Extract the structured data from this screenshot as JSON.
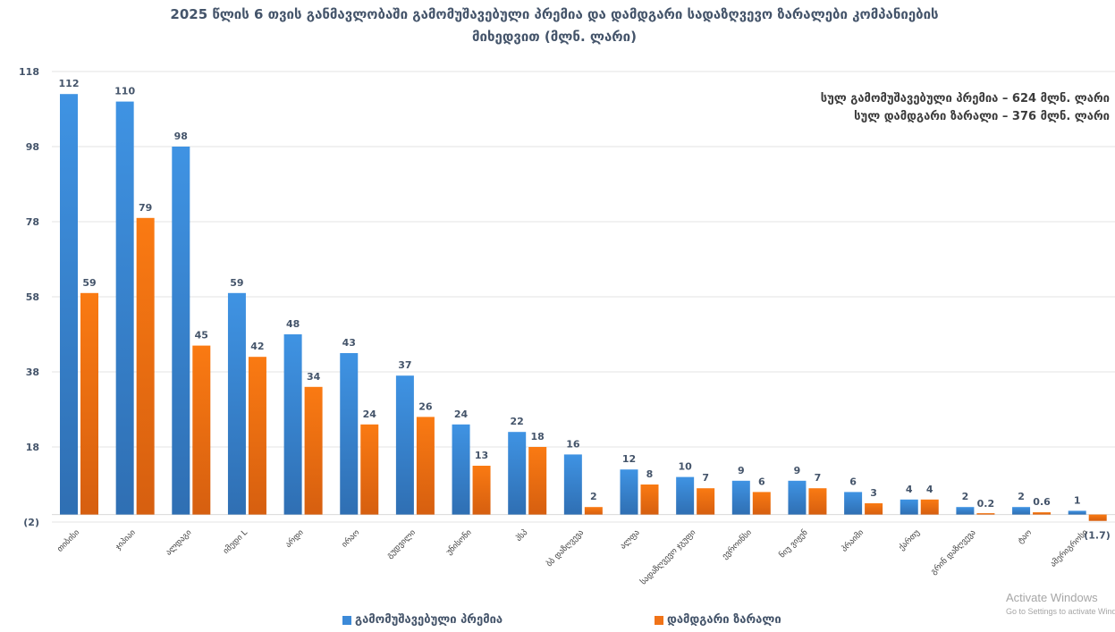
{
  "chart_data": {
    "type": "bar",
    "title": "2025 წლის 6 თვის განმავლობაში გამომუშავებული პრემია და დამდგარი სადაზღვევო ზარალები  კომპანიების მიხედვით (მლნ. ლარი)",
    "title_lines": [
      "2025 წლის 6 თვის განმავლობაში გამომუშავებული პრემია და დამდგარი სადაზღვევო ზარალები  კომპანიების",
      "მიხედვით (მლნ. ლარი)"
    ],
    "annotations": [
      "სულ გამომუშავებული პრემია – 624 მლნ. ლარი",
      "სულ დამდგარი ზარალი – 376 მლნ. ლარი"
    ],
    "xlabel": "",
    "ylabel": "",
    "ylim": [
      -2,
      118
    ],
    "yticks": [
      118,
      98,
      78,
      58,
      38,
      18,
      -2
    ],
    "ytick_labels": [
      "118",
      "98",
      "78",
      "58",
      "38",
      "18",
      "(2)"
    ],
    "grid": true,
    "legend_position": "bottom",
    "categories": [
      "თიბისი",
      "ჯიპიაი",
      "ალდაგი",
      "იმედი L",
      "არდი",
      "ირაო",
      "გუდვილი",
      "უნისონი",
      "პსპ",
      "ბბ დაზღვევა",
      "ალფა",
      "სადაზღვევო ჯგუფი",
      "ევროინსი",
      "ნიუ ვიჟენ",
      "პრაიმი",
      "ქართუ",
      "გრინ დაზღვევა",
      "ტაო",
      "ამერიგროსი"
    ],
    "series": [
      {
        "name": "გამომუშავებული პრემია",
        "color": "#3c8ad8",
        "values": [
          112,
          110,
          98,
          59,
          48,
          43,
          37,
          24,
          22,
          16,
          12,
          10,
          9,
          9,
          6,
          4,
          2,
          2,
          1
        ],
        "labels": [
          "112",
          "110",
          "98",
          "59",
          "48",
          "43",
          "37",
          "24",
          "22",
          "16",
          "12",
          "10",
          "9",
          "9",
          "6",
          "4",
          "2",
          "2",
          "1"
        ]
      },
      {
        "name": "დამდგარი ზარალი",
        "color": "#f07318",
        "values": [
          59,
          79,
          45,
          42,
          34,
          24,
          26,
          13,
          18,
          2,
          8,
          7,
          6,
          7,
          3,
          4,
          0.2,
          0.6,
          -1.7
        ],
        "labels": [
          "59",
          "79",
          "45",
          "42",
          "34",
          "24",
          "26",
          "13",
          "18",
          "2",
          "8",
          "7",
          "6",
          "7",
          "3",
          "4",
          "0.2",
          "0.6",
          "(1.7)"
        ]
      }
    ]
  },
  "watermark": {
    "line1": "Activate Windows",
    "line2": "Go to Settings to activate Windows."
  }
}
